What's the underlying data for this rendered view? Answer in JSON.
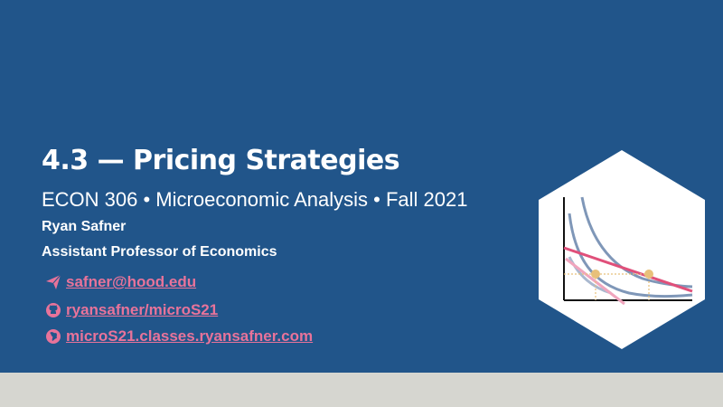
{
  "slide": {
    "title": "4.3 — Pricing Strategies",
    "subtitle": "ECON 306 • Microeconomic Analysis • Fall 2021",
    "author": "Ryan Safner",
    "role": "Assistant Professor of Economics"
  },
  "links": [
    {
      "icon": "paper-plane-icon",
      "label": "safner@hood.edu"
    },
    {
      "icon": "github-icon",
      "label": "ryansafner/microS21"
    },
    {
      "icon": "globe-icon",
      "label": "microS21.classes.ryansafner.com"
    }
  ],
  "colors": {
    "background": "#21558a",
    "link": "#e8739a",
    "footer": "#d6d6d0",
    "curve_blue": "#7f97b8",
    "curve_pink": "#e0507a",
    "point": "#e8c07a"
  }
}
